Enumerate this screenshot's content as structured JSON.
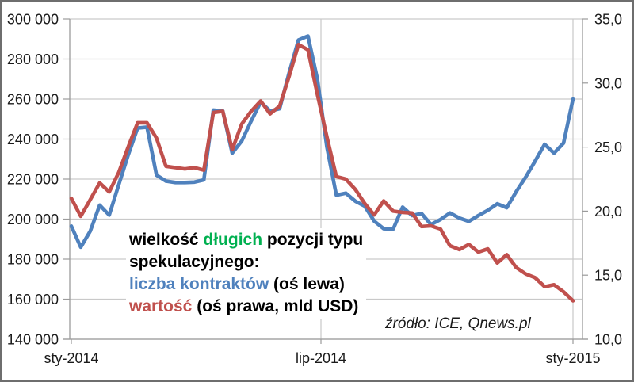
{
  "chart_data": {
    "type": "line",
    "title": "",
    "x_axis": {
      "tick_labels": [
        "sty-2014",
        "lip-2014",
        "sty-2015"
      ]
    },
    "left_axis": {
      "min": 140000,
      "max": 300000,
      "step": 20000,
      "tick_labels": [
        "300 000",
        "280 000",
        "260 000",
        "240 000",
        "220 000",
        "200 000",
        "180 000",
        "160 000",
        "140 000"
      ]
    },
    "right_axis": {
      "min": 10,
      "max": 35,
      "step": 5,
      "tick_labels": [
        "35,0",
        "30,0",
        "25,0",
        "20,0",
        "15,0",
        "10,0"
      ]
    },
    "grid": true,
    "legend_position": "inside-left",
    "series": [
      {
        "name": "liczba kontraktów (oś lewa)",
        "axis": "left",
        "color": "#4F81BD",
        "values": [
          196500,
          186000,
          194000,
          207000,
          202000,
          217000,
          232000,
          245500,
          246000,
          222000,
          219000,
          218300,
          218300,
          218500,
          219600,
          254500,
          254000,
          233000,
          239000,
          249000,
          258500,
          254000,
          255200,
          273000,
          289500,
          291500,
          270000,
          236000,
          212000,
          213000,
          209000,
          206500,
          199000,
          195200,
          195000,
          206000,
          201800,
          202800,
          197300,
          199800,
          203100,
          200500,
          198900,
          201800,
          204400,
          207700,
          205700,
          213700,
          221000,
          229000,
          237400,
          233000,
          238000,
          260000
        ]
      },
      {
        "name": "wartość (oś prawa, mld USD)",
        "axis": "right",
        "color": "#C0504D",
        "values": [
          21.0,
          19.6,
          20.9,
          22.2,
          21.5,
          23.0,
          25.0,
          26.9,
          26.9,
          25.7,
          23.5,
          23.4,
          23.3,
          23.4,
          23.2,
          27.7,
          27.8,
          24.8,
          26.8,
          27.8,
          28.6,
          27.6,
          28.2,
          30.5,
          33.0,
          32.6,
          29.1,
          25.8,
          22.7,
          22.5,
          21.7,
          20.6,
          19.7,
          20.8,
          20.0,
          19.9,
          19.85,
          18.8,
          18.85,
          18.6,
          17.3,
          17.0,
          17.4,
          16.8,
          17.05,
          15.95,
          16.6,
          15.6,
          15.1,
          14.8,
          14.1,
          14.25,
          13.7,
          13.0
        ]
      }
    ],
    "source_note": "źródło: ICE, Qnews.pl"
  },
  "legend": {
    "line1": {
      "part1": "wielkość ",
      "part2": "długich",
      "part3": " pozycji typu"
    },
    "line2": "spekulacyjnego:",
    "line3": {
      "part1": "liczba kontraktów",
      "part2": " (oś lewa)"
    },
    "line4": {
      "part1": "wartość",
      "part2": " (oś prawa, mld USD)"
    }
  },
  "colors": {
    "contracts_blue": "#4F81BD",
    "value_red": "#C0504D",
    "highlight_green": "#00B050",
    "gridline": "#c9c9c9",
    "axis_line": "#9b9b9b"
  }
}
